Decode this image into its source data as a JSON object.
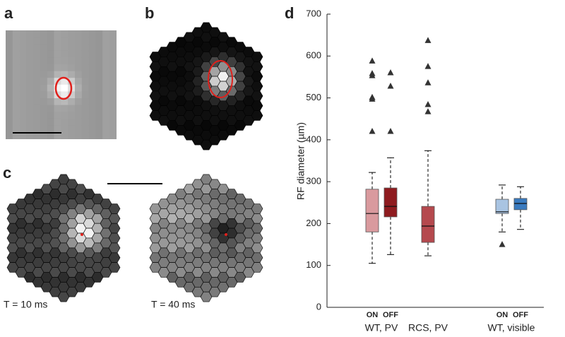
{
  "panel_labels": [
    "a",
    "b",
    "c",
    "d"
  ],
  "panel_c": {
    "frames": [
      "T = 10 ms",
      "T = 40 ms"
    ]
  },
  "chart_data": {
    "type": "box",
    "y_label": "RF diameter (µm)",
    "ylim": [
      0,
      700
    ],
    "yticks": [
      0,
      100,
      200,
      300,
      400,
      500,
      600,
      700
    ],
    "groups": [
      {
        "name": "WT, PV",
        "boxes": [
          {
            "name": "ON",
            "color": "#d99a9e",
            "whisker_low": 105,
            "q1": 180,
            "median": 224,
            "q3": 282,
            "whisker_high": 322,
            "outliers": [
              588,
              558,
              553,
              501,
              497,
              501,
              420
            ]
          },
          {
            "name": "OFF",
            "color": "#8e1b1f",
            "whisker_low": 126,
            "q1": 216,
            "median": 241,
            "q3": 285,
            "whisker_high": 357,
            "outliers": [
              560,
              528,
              420
            ]
          }
        ]
      },
      {
        "name": "RCS, PV",
        "boxes": [
          {
            "color": "#b5494e",
            "whisker_low": 123,
            "q1": 155,
            "median": 194,
            "q3": 241,
            "whisker_high": 374,
            "outliers": [
              637,
              575,
              536,
              484,
              467
            ]
          }
        ]
      },
      {
        "name": "WT, visible",
        "boxes": [
          {
            "name": "ON",
            "color": "#a9c4e2",
            "whisker_low": 180,
            "q1": 224,
            "median": 228,
            "q3": 258,
            "whisker_high": 292,
            "outliers": [
              150
            ]
          },
          {
            "name": "OFF",
            "color": "#3a7bbf",
            "whisker_low": 186,
            "q1": 233,
            "median": 248,
            "q3": 260,
            "whisker_high": 288,
            "outliers": []
          }
        ]
      }
    ]
  }
}
